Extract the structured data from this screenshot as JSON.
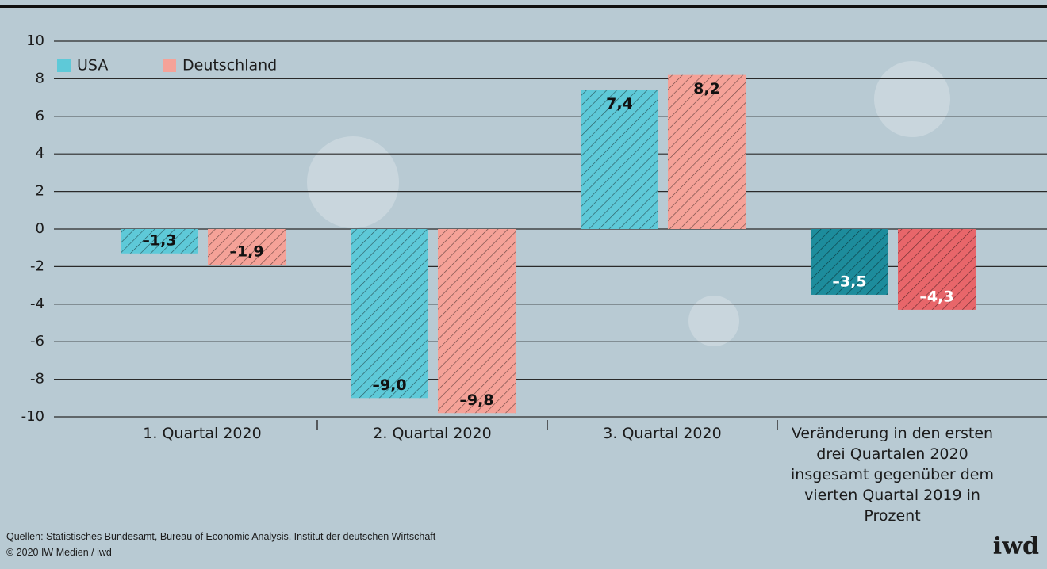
{
  "chart_data": {
    "type": "bar",
    "categories": [
      "1. Quartal 2020",
      "2. Quartal 2020",
      "3. Quartal 2020",
      "Veränderung in den ersten drei Quartalen 2020 insgesamt gegenüber dem vierten Quartal 2019 in Prozent"
    ],
    "series": [
      {
        "name": "USA",
        "color": "#5ec9d8",
        "colors": [
          "#5ec9d8",
          "#5ec9d8",
          "#5ec9d8",
          "#1d8c9c"
        ],
        "values": [
          -1.3,
          -9.0,
          7.4,
          -3.5
        ],
        "value_labels": [
          "–1,3",
          "–9,0",
          "7,4",
          "–3,5"
        ]
      },
      {
        "name": "Deutschland",
        "color": "#f5a298",
        "colors": [
          "#f5a298",
          "#f5a298",
          "#f5a298",
          "#e8666a"
        ],
        "values": [
          -1.9,
          -9.8,
          8.2,
          -4.3
        ],
        "value_labels": [
          "–1,9",
          "–9,8",
          "8,2",
          "–4,3"
        ]
      }
    ],
    "ylim": [
      -10,
      10
    ],
    "yticks": [
      -10,
      -8,
      -6,
      -4,
      -2,
      0,
      2,
      4,
      6,
      8,
      10
    ],
    "grid": true,
    "legend": "top-left",
    "hatched": true
  },
  "footer": {
    "sources": "Quellen: Statistisches Bundesamt, Bureau of Economic Analysis, Institut der deutschen Wirtschaft",
    "copyright": "© 2020 IW Medien / iwd",
    "brand": "iwd"
  }
}
